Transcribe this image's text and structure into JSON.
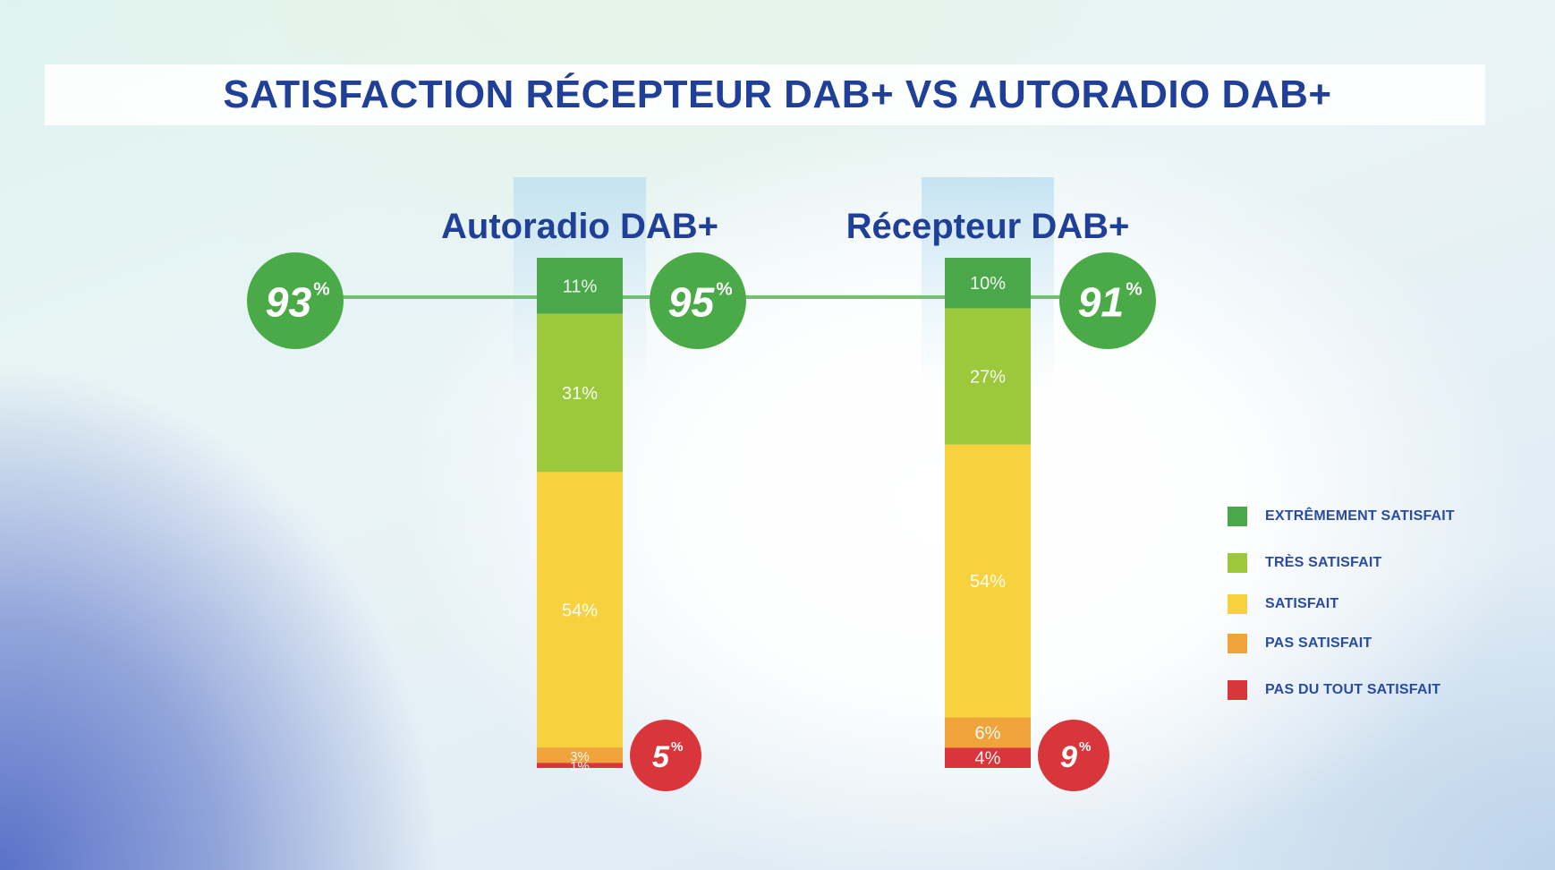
{
  "title": "SATISFACTION RÉCEPTEUR DAB+ VS AUTORADIO DAB+",
  "chart_data": {
    "type": "bar",
    "stacked": true,
    "categories": [
      "Autoradio DAB+",
      "Récepteur DAB+"
    ],
    "series": [
      {
        "name": "EXTRÊMEMENT SATISFAIT",
        "color": "#4aa84a",
        "values": [
          11,
          10
        ],
        "labels": [
          "11%",
          "10%"
        ]
      },
      {
        "name": "TRÈS SATISFAIT",
        "color": "#9cc83c",
        "values": [
          31,
          27
        ],
        "labels": [
          "31%",
          "27%"
        ]
      },
      {
        "name": "SATISFAIT",
        "color": "#f7d23e",
        "values": [
          54,
          54
        ],
        "labels": [
          "54%",
          "54%"
        ]
      },
      {
        "name": "PAS SATISFAIT",
        "color": "#f0a33a",
        "values": [
          3,
          6
        ],
        "labels": [
          "3%",
          "6%"
        ]
      },
      {
        "name": "PAS DU TOUT SATISFAIT",
        "color": "#d8363a",
        "values": [
          1,
          4
        ],
        "labels": [
          "1%",
          "4%"
        ]
      }
    ],
    "satisfied_badges": [
      {
        "value": "93",
        "unit": "%",
        "color": "#4aaa48"
      },
      {
        "value": "95",
        "unit": "%",
        "color": "#4aaa48"
      },
      {
        "value": "91",
        "unit": "%",
        "color": "#4aaa48"
      }
    ],
    "unsatisfied_badges": [
      {
        "value": "5",
        "unit": "%",
        "color": "#d8363a"
      },
      {
        "value": "9",
        "unit": "%",
        "color": "#d8363a"
      }
    ],
    "legend_position": "right"
  }
}
